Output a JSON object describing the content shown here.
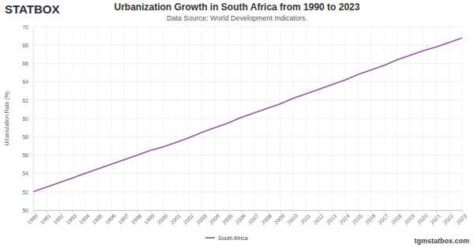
{
  "chart_data": {
    "type": "line",
    "title": "Urbanization Growth in South Africa from 1990 to 2023",
    "subtitle": "Data Source: World Development Indicators.",
    "y_label": "Urbanization Rate (%)",
    "annotations": [
      "STATBOX",
      "tgmstatbox.com"
    ],
    "x": [
      1990,
      1991,
      1992,
      1993,
      1994,
      1995,
      1996,
      1997,
      1998,
      1999,
      2000,
      2001,
      2002,
      2003,
      2004,
      2005,
      2006,
      2007,
      2008,
      2009,
      2010,
      2011,
      2012,
      2013,
      2014,
      2015,
      2016,
      2017,
      2018,
      2019,
      2020,
      2021,
      2022,
      2023
    ],
    "series": [
      {
        "name": "South Africa",
        "color": "#9b4fa8",
        "values": [
          52.0,
          52.5,
          53.0,
          53.5,
          54.0,
          54.5,
          55.0,
          55.5,
          56.0,
          56.5,
          56.9,
          57.4,
          57.9,
          58.5,
          59.0,
          59.5,
          60.1,
          60.6,
          61.1,
          61.6,
          62.2,
          62.7,
          63.2,
          63.7,
          64.2,
          64.8,
          65.3,
          65.8,
          66.4,
          66.9,
          67.4,
          67.8,
          68.3,
          68.8
        ]
      }
    ],
    "xlim": [
      1990,
      2023
    ],
    "xticks": [
      1990,
      1991,
      1992,
      1993,
      1994,
      1995,
      1996,
      1997,
      1998,
      1999,
      2000,
      2001,
      2002,
      2003,
      2004,
      2005,
      2006,
      2007,
      2008,
      2009,
      2010,
      2011,
      2012,
      2013,
      2014,
      2015,
      2016,
      2017,
      2018,
      2019,
      2020,
      2021,
      2022,
      2023
    ],
    "ylim": [
      50,
      70
    ],
    "yticks": [
      50,
      52,
      54,
      56,
      58,
      60,
      62,
      64,
      66,
      68,
      70
    ],
    "grid": true,
    "legend": "bottom"
  }
}
